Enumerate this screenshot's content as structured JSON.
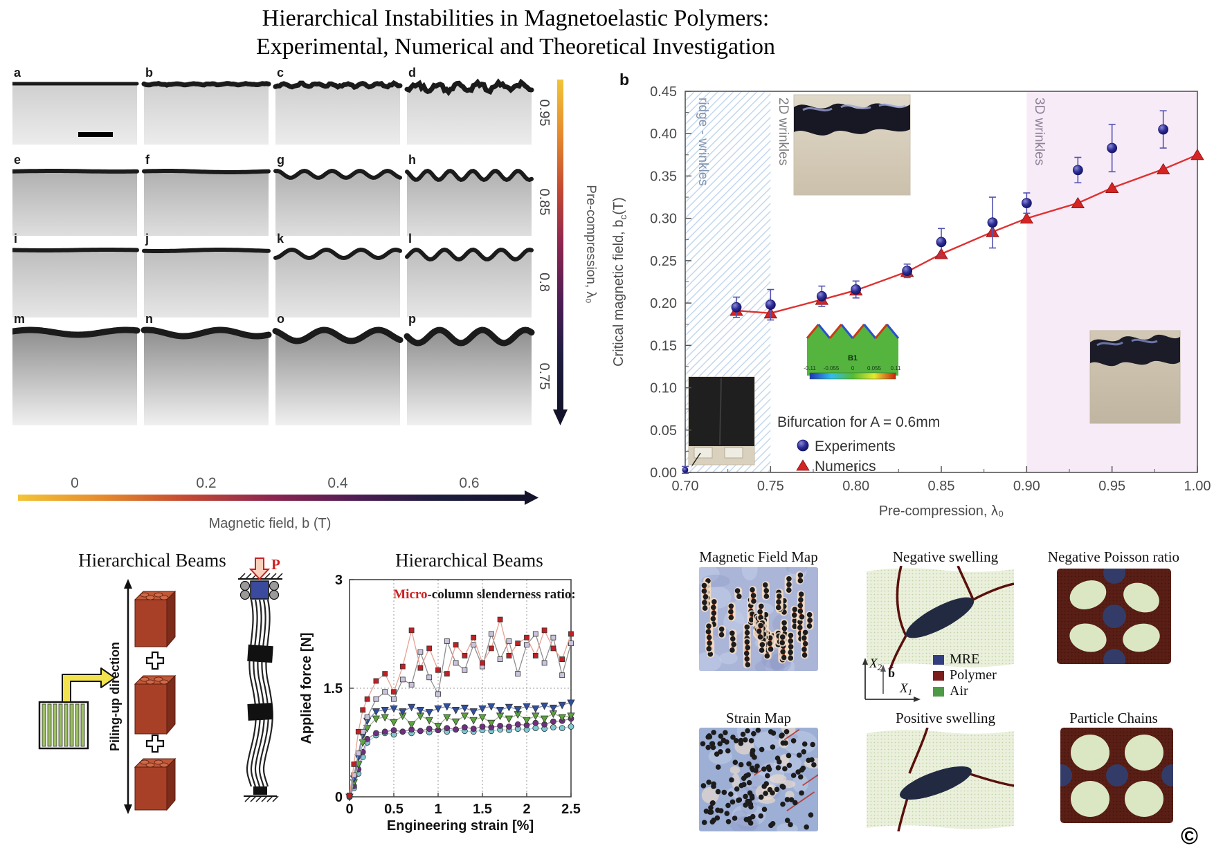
{
  "title": {
    "line1": "Hierarchical Instabilities in Magnetoelastic Polymers:",
    "line2": "Experimental, Numerical and Theoretical Investigation"
  },
  "micrograph_grid": {
    "x_axis_label": "Magnetic field, b (T)",
    "y_axis_label": "Pre-compression, λ₀",
    "col_values": [
      "0",
      "0.2",
      "0.4",
      "0.6"
    ],
    "row_values": [
      "0.95",
      "0.85",
      "0.8",
      "0.75"
    ],
    "cells": [
      {
        "label": "a",
        "amp": 0,
        "periods": 0,
        "rough": false,
        "scalebar": true
      },
      {
        "label": "b",
        "amp": 1.5,
        "periods": 7,
        "rough": true,
        "scalebar": false
      },
      {
        "label": "c",
        "amp": 4,
        "periods": 8,
        "rough": true,
        "scalebar": false
      },
      {
        "label": "d",
        "amp": 9,
        "periods": 6,
        "rough": true,
        "scalebar": false
      },
      {
        "label": "e",
        "amp": 1,
        "periods": 1,
        "rough": false,
        "scalebar": false
      },
      {
        "label": "f",
        "amp": 2,
        "periods": 1,
        "rough": false,
        "scalebar": false
      },
      {
        "label": "g",
        "amp": 10,
        "periods": 4.5,
        "rough": false,
        "scalebar": false
      },
      {
        "label": "h",
        "amp": 13,
        "periods": 5.5,
        "rough": false,
        "scalebar": false
      },
      {
        "label": "i",
        "amp": 1,
        "periods": 1,
        "rough": false,
        "scalebar": false
      },
      {
        "label": "j",
        "amp": 2,
        "periods": 1,
        "rough": false,
        "scalebar": false
      },
      {
        "label": "k",
        "amp": 12,
        "periods": 3.6,
        "rough": false,
        "scalebar": false
      },
      {
        "label": "l",
        "amp": 14,
        "periods": 4.4,
        "rough": false,
        "scalebar": false
      },
      {
        "label": "m",
        "amp": 7,
        "periods": 1.3,
        "rough": false,
        "scalebar": false
      },
      {
        "label": "n",
        "amp": 9,
        "periods": 1.7,
        "rough": false,
        "scalebar": false
      },
      {
        "label": "o",
        "amp": 16,
        "periods": 2.3,
        "rough": false,
        "scalebar": false
      },
      {
        "label": "p",
        "amp": 19,
        "periods": 2.9,
        "rough": false,
        "scalebar": false
      }
    ],
    "colorbar_colors": [
      "#f2c437",
      "#e5892d",
      "#c44a32",
      "#8c2650",
      "#4e1d55",
      "#1d1d3f",
      "#13132b"
    ]
  },
  "chart_data": [
    {
      "type": "scatter",
      "panel_label": "b",
      "xlabel": "Pre-compression, λ₀",
      "ylabel_main": "Critical magnetic field, b",
      "ylabel_sub": "c",
      "ylabel_suffix": "(T)",
      "xlim": [
        0.7,
        1.0
      ],
      "ylim": [
        0.0,
        0.45
      ],
      "xticks": [
        "0.70",
        "0.75",
        "0.80",
        "0.85",
        "0.90",
        "0.95",
        "1.00"
      ],
      "ytick_step": 0.05,
      "regions": [
        {
          "label": "ridge - wrinkles",
          "x0": 0.7,
          "x1": 0.75,
          "style": "hatched",
          "label_color": "#7f92ad"
        },
        {
          "label": "2D wrinkles",
          "x0": 0.75,
          "x1": 0.9,
          "style": "plain",
          "label_color": "#7d7d7d"
        },
        {
          "label": "3D wrinkles",
          "x0": 0.9,
          "x1": 1.0,
          "style": "pink",
          "label_color": "#8d8296"
        }
      ],
      "legend_title": "Bifurcation for A = 0.6mm",
      "series": [
        {
          "name": "Experiments",
          "marker": "sphere",
          "color": "#23238c",
          "x": [
            0.7,
            0.73,
            0.75,
            0.78,
            0.8,
            0.83,
            0.85,
            0.88,
            0.9,
            0.93,
            0.95,
            0.98
          ],
          "y": [
            0.003,
            0.195,
            0.198,
            0.208,
            0.216,
            0.238,
            0.272,
            0.295,
            0.318,
            0.357,
            0.383,
            0.405
          ],
          "yerr": [
            0.004,
            0.012,
            0.018,
            0.012,
            0.01,
            0.008,
            0.016,
            0.03,
            0.012,
            0.015,
            0.028,
            0.022
          ]
        },
        {
          "name": "Numerics",
          "marker": "triangle",
          "color": "#d42424",
          "x": [
            0.73,
            0.75,
            0.78,
            0.8,
            0.83,
            0.85,
            0.88,
            0.9,
            0.93,
            0.95,
            0.98,
            1.0
          ],
          "y": [
            0.191,
            0.188,
            0.204,
            0.215,
            0.237,
            0.258,
            0.284,
            0.3,
            0.318,
            0.336,
            0.358,
            0.375
          ]
        }
      ],
      "inset_fem": {
        "label": "B1",
        "ticks": [
          "-0.11",
          "-0.055",
          "0",
          "0.055",
          "0.11"
        ]
      }
    },
    {
      "type": "line",
      "title": "Hierarchical Beams",
      "annotation_highlight": "Micro",
      "annotation_rest": "-column slenderness ratio:",
      "xlabel": "Engineering strain [%]",
      "ylabel": "Applied force [N]",
      "xlim": [
        0,
        2.5
      ],
      "ylim": [
        0,
        3
      ],
      "xticks": [
        "0",
        "0.5",
        "1",
        "1.5",
        "2",
        "2.5"
      ],
      "yticks": [
        "0",
        "1.5",
        "3"
      ],
      "x": [
        0,
        0.05,
        0.1,
        0.15,
        0.2,
        0.3,
        0.4,
        0.5,
        0.6,
        0.7,
        0.8,
        0.9,
        1,
        1.1,
        1.2,
        1.3,
        1.4,
        1.5,
        1.6,
        1.7,
        1.8,
        1.9,
        2,
        2.1,
        2.2,
        2.3,
        2.4,
        2.5
      ],
      "series": [
        {
          "name": "cyan-circles",
          "marker": "circle",
          "color": "#7ec8d2",
          "line": "#a9d6dc",
          "y": [
            0,
            0.12,
            0.32,
            0.55,
            0.75,
            0.85,
            0.88,
            0.86,
            0.9,
            0.88,
            0.91,
            0.89,
            0.92,
            0.9,
            0.93,
            0.91,
            0.9,
            0.92,
            0.91,
            0.93,
            0.92,
            0.94,
            0.93,
            0.95,
            0.94,
            0.96,
            0.95,
            0.97
          ]
        },
        {
          "name": "purple-circles",
          "marker": "circle",
          "color": "#6f2f7f",
          "line": "#a583ae",
          "y": [
            0,
            0.15,
            0.38,
            0.62,
            0.8,
            0.88,
            0.9,
            0.92,
            0.9,
            0.93,
            0.91,
            0.94,
            0.92,
            0.95,
            0.93,
            0.96,
            0.94,
            0.97,
            0.96,
            0.98,
            0.97,
            1.0,
            0.99,
            1.02,
            1.0,
            1.04,
            1.05,
            1.08
          ]
        },
        {
          "name": "green-triangles",
          "marker": "tri",
          "color": "#5ba33c",
          "line": "#9dbb8d",
          "y": [
            0,
            0.2,
            0.45,
            0.75,
            0.95,
            1.08,
            1.1,
            1.03,
            1.12,
            1.0,
            1.12,
            1.06,
            0.98,
            1.1,
            1.04,
            1.12,
            1.06,
            1.1,
            1.02,
            1.12,
            1.08,
            1.14,
            1.06,
            1.12,
            1.08,
            1.15,
            1.1,
            1.12
          ]
        },
        {
          "name": "blue-triangles",
          "marker": "tri",
          "color": "#2f4f9e",
          "line": "#7d8fc0",
          "y": [
            0,
            0.25,
            0.55,
            0.85,
            1.05,
            1.18,
            1.2,
            1.22,
            1.18,
            1.24,
            1.2,
            1.17,
            1.22,
            1.25,
            1.2,
            1.23,
            1.18,
            1.22,
            1.25,
            1.2,
            1.24,
            1.21,
            1.25,
            1.22,
            1.26,
            1.23,
            1.27,
            1.3
          ]
        },
        {
          "name": "lavender-squares",
          "marker": "square",
          "color": "#c9c3dc",
          "line": "#8f8f8f",
          "y": [
            0.01,
            0.3,
            0.6,
            0.9,
            1.1,
            1.35,
            1.45,
            1.35,
            1.62,
            1.55,
            2.0,
            1.65,
            1.42,
            2.15,
            1.85,
            1.75,
            2.1,
            1.8,
            2.25,
            1.9,
            2.15,
            1.7,
            2.1,
            2.25,
            1.85,
            2.2,
            1.68,
            2.12
          ]
        },
        {
          "name": "red-squares",
          "marker": "square",
          "color": "#bf2026",
          "line": "#e8a193",
          "y": [
            0.02,
            0.45,
            0.9,
            1.2,
            1.35,
            1.6,
            1.7,
            1.45,
            1.8,
            2.3,
            1.78,
            2.05,
            1.75,
            1.7,
            2.1,
            1.95,
            2.2,
            1.85,
            2.05,
            2.45,
            1.95,
            2.12,
            2.2,
            1.95,
            2.3,
            2.05,
            1.9,
            2.25
          ]
        }
      ]
    }
  ],
  "beams_diagram": {
    "title": "Hierarchical Beams",
    "axis_label": "Piling-up direction",
    "load_label": "P"
  },
  "micro_panels": {
    "titles": [
      "Magnetic Field Map",
      "Negative swelling",
      "Negative Poisson ratio",
      "Strain Map",
      "Positive swelling",
      "Particle Chains"
    ],
    "axis_x2": "X",
    "axis_x2_sub": "2",
    "axis_b": "b̄",
    "axis_x1": "X",
    "axis_x1_sub": "1",
    "legend": [
      {
        "label": "MRE",
        "color": "#333e80"
      },
      {
        "label": "Polymer",
        "color": "#7a1f1c"
      },
      {
        "label": "Air",
        "color": "#4c9a45"
      }
    ]
  },
  "copyright": "©"
}
